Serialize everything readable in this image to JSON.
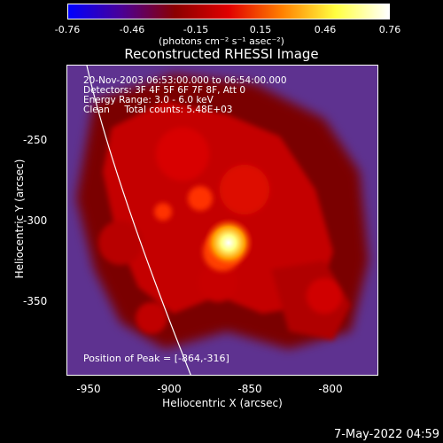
{
  "colorbar": {
    "ticks": [
      "-0.76",
      "-0.46",
      "-0.15",
      "0.15",
      "0.46",
      "0.76"
    ],
    "units": "(photons cm⁻² s⁻¹ asec⁻²)",
    "colors": [
      "#0000ff",
      "#4b0096",
      "#8b0000",
      "#e00000",
      "#ff8000",
      "#ffff40",
      "#ffffff"
    ]
  },
  "title": "Reconstructed RHESSI Image",
  "annotations": {
    "time": "20-Nov-2003 06:53:00.000 to 06:54:00.000",
    "detectors": "Detectors: 3F 4F 5F 6F 7F 8F, Att 0",
    "energy": "Energy Range: 3.0 - 6.0 keV",
    "clean": "Clean     Total counts: 5.48E+03",
    "peak": "Position of Peak = [-864,-316]"
  },
  "axes": {
    "xlabel": "Heliocentric X (arcsec)",
    "ylabel": "Heliocentric Y (arcsec)",
    "xticks": [
      "-950",
      "-900",
      "-850",
      "-800"
    ],
    "yticks": [
      "-250",
      "-300",
      "-350"
    ]
  },
  "timestamp": "7-May-2022 04:59"
}
